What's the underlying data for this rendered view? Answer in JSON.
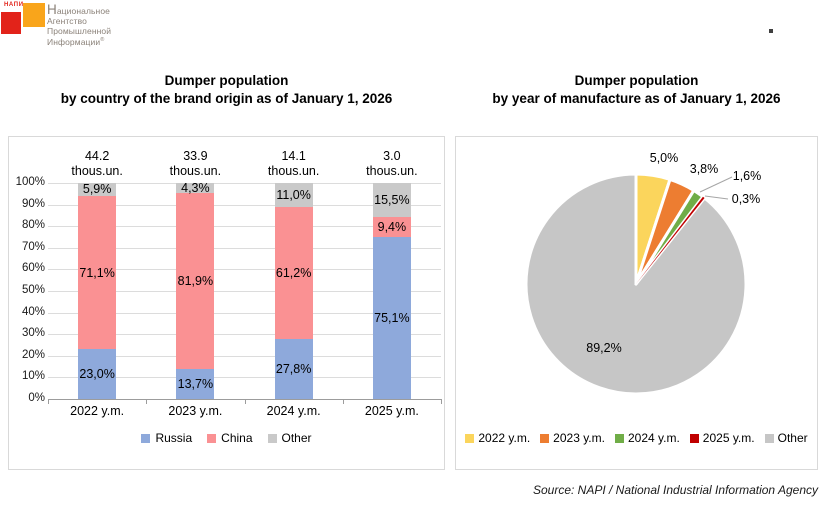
{
  "logo": {
    "acronym": "НАПИ",
    "name_line1_initial": "Н",
    "name_line1_rest": "ациональное",
    "name_line2": "Агентство",
    "name_line3": "Промышленной",
    "name_line4": "Информации",
    "registered_mark": "®"
  },
  "header_dot": ".",
  "bar_chart_header": {
    "line1": "Dumper population",
    "line2": "by country of the brand origin as of January 1, 2026"
  },
  "pie_chart_header": {
    "line1": "Dumper population",
    "line2": "by year of manufacture as of January 1, 2026"
  },
  "chart_data": [
    {
      "type": "bar",
      "stacking": "percent",
      "title": "Dumper population by country of the brand origin as of January 1, 2026",
      "categories": [
        "2022 y.m.",
        "2023 y.m.",
        "2024 y.m.",
        "2025 y.m."
      ],
      "category_totals": [
        {
          "value": "44.2",
          "unit": "thous.un."
        },
        {
          "value": "33.9",
          "unit": "thous.un."
        },
        {
          "value": "14.1",
          "unit": "thous.un."
        },
        {
          "value": "3.0",
          "unit": "thous.un."
        }
      ],
      "series": [
        {
          "name": "Russia",
          "color": "#8EA9DB",
          "values": [
            23.0,
            13.7,
            27.8,
            75.1
          ],
          "labels": [
            "23,0%",
            "13,7%",
            "27,8%",
            "75,1%"
          ]
        },
        {
          "name": "China",
          "color": "#FA9193",
          "values": [
            71.1,
            81.9,
            61.2,
            9.4
          ],
          "labels": [
            "71,1%",
            "81,9%",
            "61,2%",
            "9,4%"
          ]
        },
        {
          "name": "Other",
          "color": "#C9C9C9",
          "values": [
            5.9,
            4.3,
            11.0,
            15.5
          ],
          "labels": [
            "5,9%",
            "4,3%",
            "11,0%",
            "15,5%"
          ]
        }
      ],
      "ylim": [
        0,
        100
      ],
      "yticks": [
        "0%",
        "10%",
        "20%",
        "30%",
        "40%",
        "50%",
        "60%",
        "70%",
        "80%",
        "90%",
        "100%"
      ],
      "grid": true,
      "legend_position": "bottom"
    },
    {
      "type": "pie",
      "title": "Dumper population by year of manufacture as of January 1, 2026",
      "labels": [
        "2022 y.m.",
        "2023 y.m.",
        "2024 y.m.",
        "2025 y.m.",
        "Other"
      ],
      "values": [
        5.0,
        3.8,
        1.6,
        0.3,
        89.2
      ],
      "percent_labels": [
        "5,0%",
        "3,8%",
        "1,6%",
        "0,3%",
        "89,2%"
      ],
      "colors": [
        "#FBD55C",
        "#ED7D31",
        "#70AD47",
        "#C00000",
        "#C6C6C6"
      ],
      "start_angle": "12-oclock",
      "direction": "clockwise",
      "legend_position": "bottom"
    }
  ],
  "source_note": "Source: NAPI / National Industrial Information Agency"
}
